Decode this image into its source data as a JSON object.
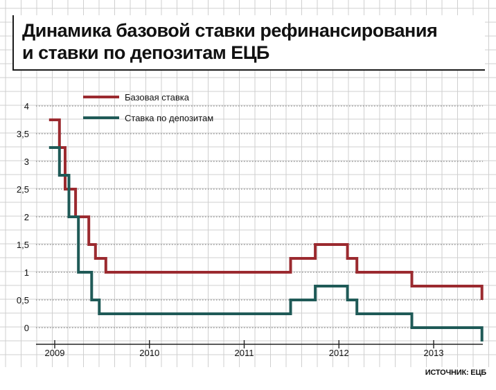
{
  "title": "Динамика базовой ставки рефинансирования\nи ставки по депозитам ЕЦБ",
  "source": "ИСТОЧНИК: ЕЦБ",
  "colors": {
    "base_rate": "#9b2a2f",
    "deposit_rate": "#1f5a57",
    "grid": "#cfcfcf",
    "dotted": "#8a8a8a"
  },
  "chart_data": {
    "type": "line",
    "step": "after",
    "xlabel": "",
    "ylabel": "",
    "ylim": [
      -0.25,
      4
    ],
    "xlim": [
      2008.9,
      2013.5
    ],
    "yticks": [
      0,
      0.5,
      1,
      1.5,
      2,
      2.5,
      3,
      3.5,
      4
    ],
    "ytick_labels": [
      "0",
      "0,5",
      "1",
      "1,5",
      "2",
      "2,5",
      "3",
      "3,5",
      "4"
    ],
    "xticks": [
      2009,
      2010,
      2011,
      2012,
      2013
    ],
    "xtick_labels": [
      "2009",
      "2010",
      "2011",
      "2012",
      "2013"
    ],
    "grid": true,
    "legend": "top-left",
    "series": [
      {
        "name": "Базовая ставка",
        "color": "#9b2a2f",
        "points": [
          [
            2008.94,
            3.75
          ],
          [
            2009.05,
            3.25
          ],
          [
            2009.11,
            2.5
          ],
          [
            2009.22,
            2.0
          ],
          [
            2009.36,
            1.5
          ],
          [
            2009.43,
            1.25
          ],
          [
            2009.54,
            1.0
          ],
          [
            2011.49,
            1.25
          ],
          [
            2011.75,
            1.5
          ],
          [
            2012.09,
            1.25
          ],
          [
            2012.19,
            1.0
          ],
          [
            2012.77,
            0.75
          ],
          [
            2013.51,
            0.5
          ]
        ]
      },
      {
        "name": "Ставка по депозитам",
        "color": "#1f5a57",
        "points": [
          [
            2008.94,
            3.25
          ],
          [
            2009.05,
            2.75
          ],
          [
            2009.15,
            2.0
          ],
          [
            2009.25,
            1.0
          ],
          [
            2009.39,
            0.5
          ],
          [
            2009.47,
            0.25
          ],
          [
            2011.49,
            0.5
          ],
          [
            2011.75,
            0.75
          ],
          [
            2012.09,
            0.5
          ],
          [
            2012.19,
            0.25
          ],
          [
            2012.77,
            0.0
          ],
          [
            2013.51,
            -0.25
          ]
        ]
      }
    ]
  }
}
